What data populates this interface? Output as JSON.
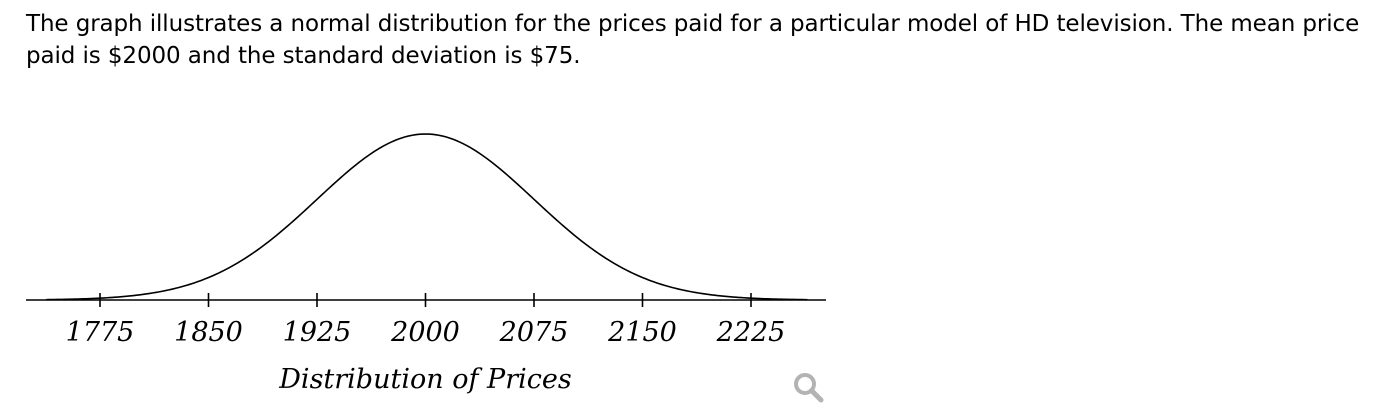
{
  "question": {
    "text": "The graph illustrates a normal distribution for the prices paid for a particular model of HD television. The mean price paid is $2000 and the standard deviation is $75."
  },
  "chart_data": {
    "type": "line",
    "title": "",
    "xlabel": "Distribution of Prices",
    "ylabel": "",
    "mean": 2000,
    "std_dev": 75,
    "xlim": [
      1725,
      2275
    ],
    "ticks": [
      1775,
      1850,
      1925,
      2000,
      2075,
      2150,
      2225
    ],
    "tick_labels": [
      "1775",
      "1850",
      "1925",
      "2000",
      "2075",
      "2150",
      "2225"
    ],
    "grid": false,
    "curve_color": "#000000"
  },
  "controls": {
    "zoom_icon": "magnifier-icon",
    "zoom_icon_color": "#b3b3b3"
  }
}
